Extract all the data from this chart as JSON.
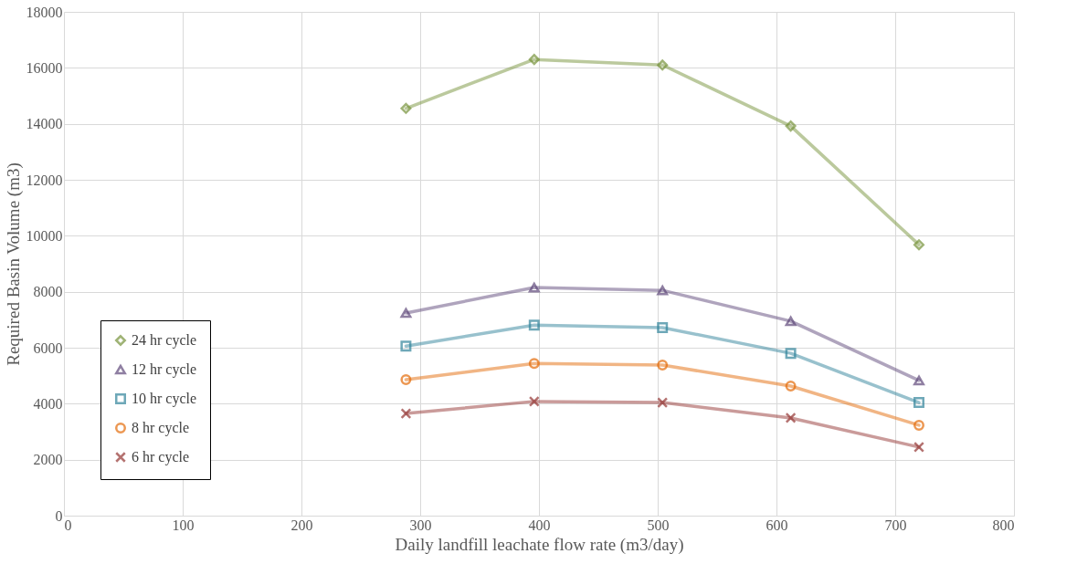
{
  "chart_data": {
    "type": "line",
    "xlabel": "Daily landfill leachate flow rate (m3/day)",
    "ylabel": "Required Basin Volume (m3)",
    "x": [
      288,
      396,
      504,
      612,
      720
    ],
    "xlim": [
      0,
      800
    ],
    "xticks": [
      0,
      100,
      200,
      300,
      400,
      500,
      600,
      700,
      800
    ],
    "ylim": [
      0,
      18000
    ],
    "yticks": [
      0,
      2000,
      4000,
      6000,
      8000,
      10000,
      12000,
      14000,
      16000,
      18000
    ],
    "grid": true,
    "legend": "bottom left",
    "line_style": "solid",
    "series": [
      {
        "name": "24 hr cycle",
        "color": "#77933c",
        "marker": "diamond",
        "values": [
          14550,
          16300,
          16100,
          13920,
          9680
        ]
      },
      {
        "name": "12 hr cycle",
        "color": "#604a7b",
        "marker": "triangle",
        "values": [
          7240,
          8150,
          8050,
          6950,
          4830
        ]
      },
      {
        "name": "10 hr cycle",
        "color": "#31849b",
        "marker": "square",
        "values": [
          6060,
          6810,
          6720,
          5800,
          4040
        ]
      },
      {
        "name": "8 hr cycle",
        "color": "#e46c0a",
        "marker": "circle",
        "values": [
          4860,
          5440,
          5380,
          4630,
          3230
        ]
      },
      {
        "name": "6 hr cycle",
        "color": "#953735",
        "marker": "cross",
        "values": [
          3650,
          4080,
          4040,
          3490,
          2450
        ]
      }
    ]
  }
}
